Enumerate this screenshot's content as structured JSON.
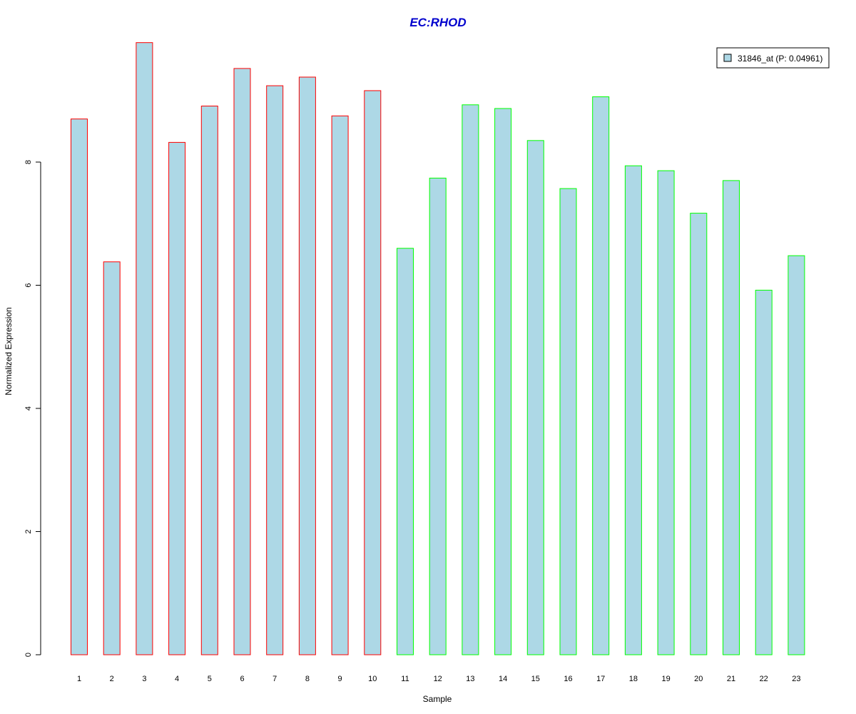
{
  "chart_data": {
    "type": "bar",
    "title": "EC:RHOD",
    "xlabel": "Sample",
    "ylabel": "Normalized Expression",
    "categories": [
      "1",
      "2",
      "3",
      "4",
      "5",
      "6",
      "7",
      "8",
      "9",
      "10",
      "11",
      "12",
      "13",
      "14",
      "15",
      "16",
      "17",
      "18",
      "19",
      "20",
      "21",
      "22",
      "23"
    ],
    "series": [
      {
        "name": "31846_at (P: 0.04961)",
        "values": [
          8.7,
          6.38,
          9.94,
          8.32,
          8.91,
          9.52,
          9.24,
          9.38,
          8.75,
          9.16,
          6.6,
          7.74,
          8.93,
          8.87,
          8.35,
          7.57,
          9.06,
          7.94,
          7.86,
          7.17,
          7.7,
          5.92,
          6.48
        ],
        "fill": "#add8e6",
        "group_border_colors": [
          "#ff0000",
          "#ff0000",
          "#ff0000",
          "#ff0000",
          "#ff0000",
          "#ff0000",
          "#ff0000",
          "#ff0000",
          "#ff0000",
          "#ff0000",
          "#00ff00",
          "#00ff00",
          "#00ff00",
          "#00ff00",
          "#00ff00",
          "#00ff00",
          "#00ff00",
          "#00ff00",
          "#00ff00",
          "#00ff00",
          "#00ff00",
          "#00ff00",
          "#00ff00"
        ]
      }
    ],
    "yticks": [
      "0",
      "2",
      "4",
      "6",
      "8"
    ],
    "ylim": [
      0,
      10
    ],
    "grid": false,
    "legend_position": "top-right",
    "title_color": "#0000cd"
  }
}
